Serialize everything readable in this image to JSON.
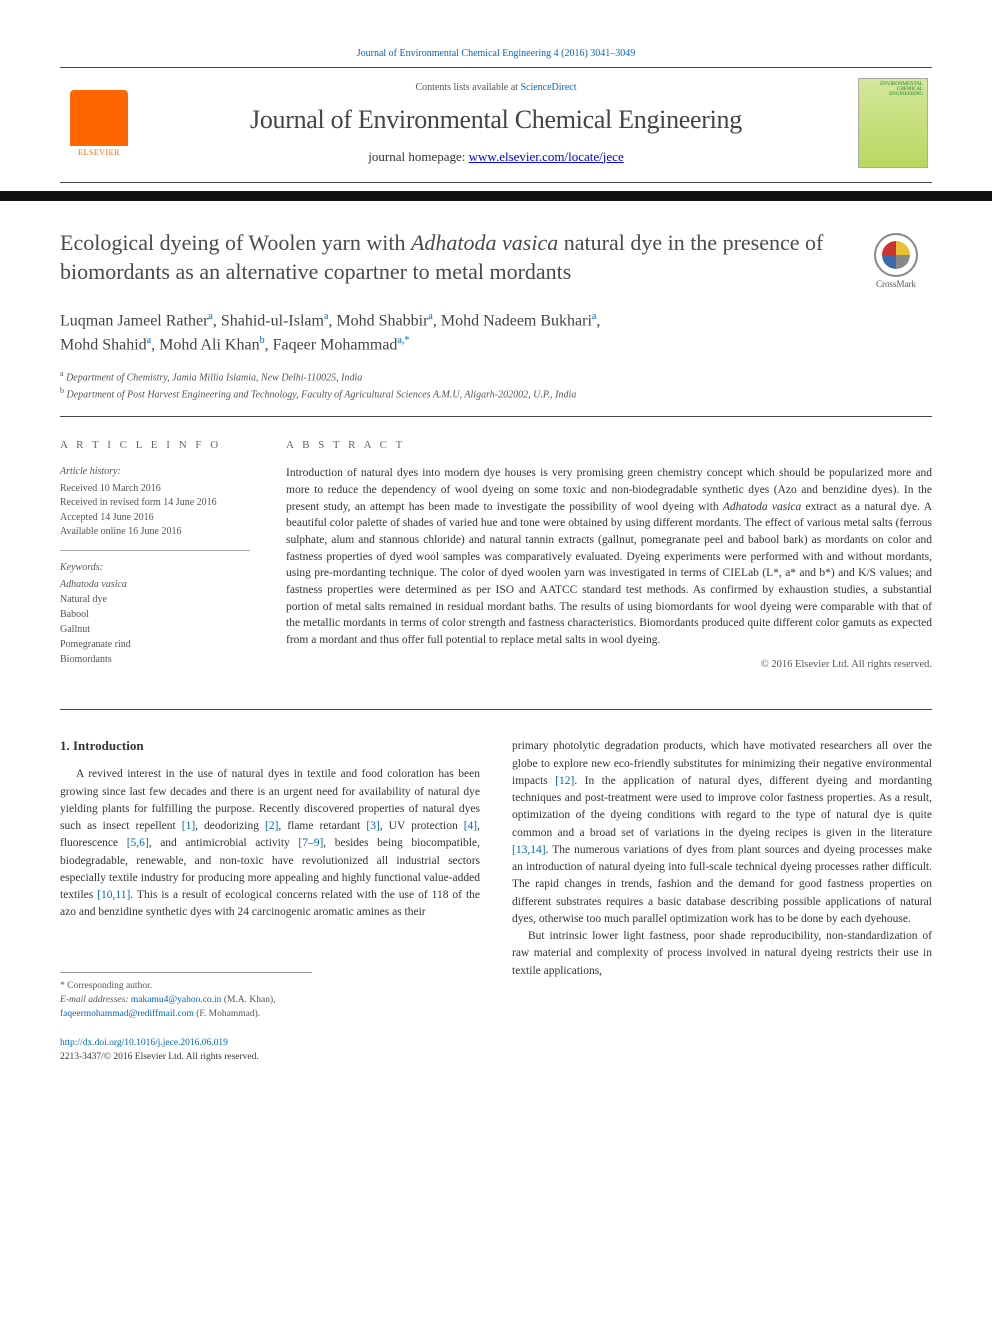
{
  "header": {
    "citation": "Journal of Environmental Chemical Engineering 4 (2016) 3041–3049",
    "contents_text": "Contents lists available at ",
    "contents_link": "ScienceDirect",
    "journal_name": "Journal of Environmental Chemical Engineering",
    "homepage_label": "journal homepage: ",
    "homepage_url": "www.elsevier.com/locate/jece",
    "publisher": "ELSEVIER",
    "cover_text": "ENVIRONMENTAL CHEMICAL ENGINEERING"
  },
  "crossmark": {
    "label": "CrossMark"
  },
  "title": {
    "html": "Ecological dyeing of Woolen yarn with <em>Adhatoda vasica</em> natural dye in the presence of biomordants as an alternative copartner to metal mordants"
  },
  "authors": {
    "a1": "Luqman Jameel Rather",
    "a2": "Shahid-ul-Islam",
    "a3": "Mohd Shabbir",
    "a4": "Mohd Nadeem Bukhari",
    "a5": "Mohd Shahid",
    "a6": "Mohd Ali Khan",
    "a7": "Faqeer Mohammad"
  },
  "affiliations": {
    "a": "Department of Chemistry, Jamia Millia Islamia, New Delhi-110025, India",
    "b": "Department of Post Harvest Engineering and Technology, Faculty of Agricultural Sciences A.M.U, Aligarh-202002, U.P., India"
  },
  "article_info": {
    "heading": "A R T I C L E  I N F O",
    "history_label": "Article history:",
    "received": "Received 10 March 2016",
    "revised": "Received in revised form 14 June 2016",
    "accepted": "Accepted 14 June 2016",
    "online": "Available online 16 June 2016",
    "keywords_label": "Keywords:",
    "keywords": [
      "Adhatoda vasica",
      "Natural dye",
      "Babool",
      "Gallnut",
      "Pomegranate rind",
      "Biomordants"
    ]
  },
  "abstract": {
    "heading": "A B S T R A C T",
    "text_html": "Introduction of natural dyes into modern dye houses is very promising green chemistry concept which should be popularized more and more to reduce the dependency of wool dyeing on some toxic and non-biodegradable synthetic dyes (Azo and benzidine dyes). In the present study, an attempt has been made to investigate the possibility of wool dyeing with <em>Adhatoda vasica</em> extract as a natural dye. A beautiful color palette of shades of varied hue and tone were obtained by using different mordants. The effect of various metal salts (ferrous sulphate, alum and stannous chloride) and natural tannin extracts (gallnut, pomegranate peel and babool bark) as mordants on color and fastness properties of dyed wool samples was comparatively evaluated. Dyeing experiments were performed with and without mordants, using pre-mordanting technique. The color of dyed woolen yarn was investigated in terms of CIELab (L*, a* and b*) and K/S values; and fastness properties were determined as per ISO and AATCC standard test methods. As confirmed by exhaustion studies, a substantial portion of metal salts remained in residual mordant baths. The results of using biomordants for wool dyeing were comparable with that of the metallic mordants in terms of color strength and fastness characteristics. Biomordants produced quite different color gamuts as expected from a mordant and thus offer full potential to replace metal salts in wool dyeing.",
    "copyright": "© 2016 Elsevier Ltd. All rights reserved."
  },
  "body": {
    "intro_heading": "1. Introduction",
    "col1_html": "A revived interest in the use of natural dyes in textile and food coloration has been growing since last few decades and there is an urgent need for availability of natural dye yielding plants for fulfilling the purpose. Recently discovered properties of natural dyes such as insect repellent <span class=\"ref\">[1]</span>, deodorizing <span class=\"ref\">[2]</span>, flame retardant <span class=\"ref\">[3]</span>, UV protection <span class=\"ref\">[4]</span>, fluorescence <span class=\"ref\">[5,6]</span>, and antimicrobial activity <span class=\"ref\">[7–9]</span>, besides being biocompatible, biodegradable, renewable, and non-toxic have revolutionized all industrial sectors especially textile industry for producing more appealing and highly functional value-added textiles <span class=\"ref\">[10,11]</span>. This is a result of ecological concerns related with the use of 118 of the azo and benzidine synthetic dyes with 24 carcinogenic aromatic amines as their",
    "col2_p1_html": "primary photolytic degradation products, which have motivated researchers all over the globe to explore new eco-friendly substitutes for minimizing their negative environmental impacts <span class=\"ref\">[12]</span>. In the application of natural dyes, different dyeing and mordanting techniques and post-treatment were used to improve color fastness properties. As a result, optimization of the dyeing conditions with regard to the type of natural dye is quite common and a broad set of variations in the dyeing recipes is given in the literature <span class=\"ref\">[13,14]</span>. The numerous variations of dyes from plant sources and dyeing processes make an introduction of natural dyeing into full-scale technical dyeing processes rather difficult. The rapid changes in trends, fashion and the demand for good fastness properties on different substrates requires a basic database describing possible applications of natural dyes, otherwise too much parallel optimization work has to be done by each dyehouse.",
    "col2_p2_html": "But intrinsic lower light fastness, poor shade reproducibility, non-standardization of raw material and complexity of process involved in natural dyeing restricts their use in textile applications,"
  },
  "footnotes": {
    "corresponding": "* Corresponding author.",
    "email_label": "E-mail addresses: ",
    "email1": "makamu4@yahoo.co.in",
    "email1_name": " (M.A. Khan),",
    "email2": "faqeermohammad@rediffmail.com",
    "email2_name": " (F. Mohammad)."
  },
  "footer": {
    "doi": "http://dx.doi.org/10.1016/j.jece.2016.06.019",
    "issn_line": "2213-3437/© 2016 Elsevier Ltd. All rights reserved."
  },
  "colors": {
    "link": "#0066cc",
    "text": "#333333",
    "muted": "#555555",
    "border": "#444444",
    "elsevier_orange": "#ff6600"
  }
}
